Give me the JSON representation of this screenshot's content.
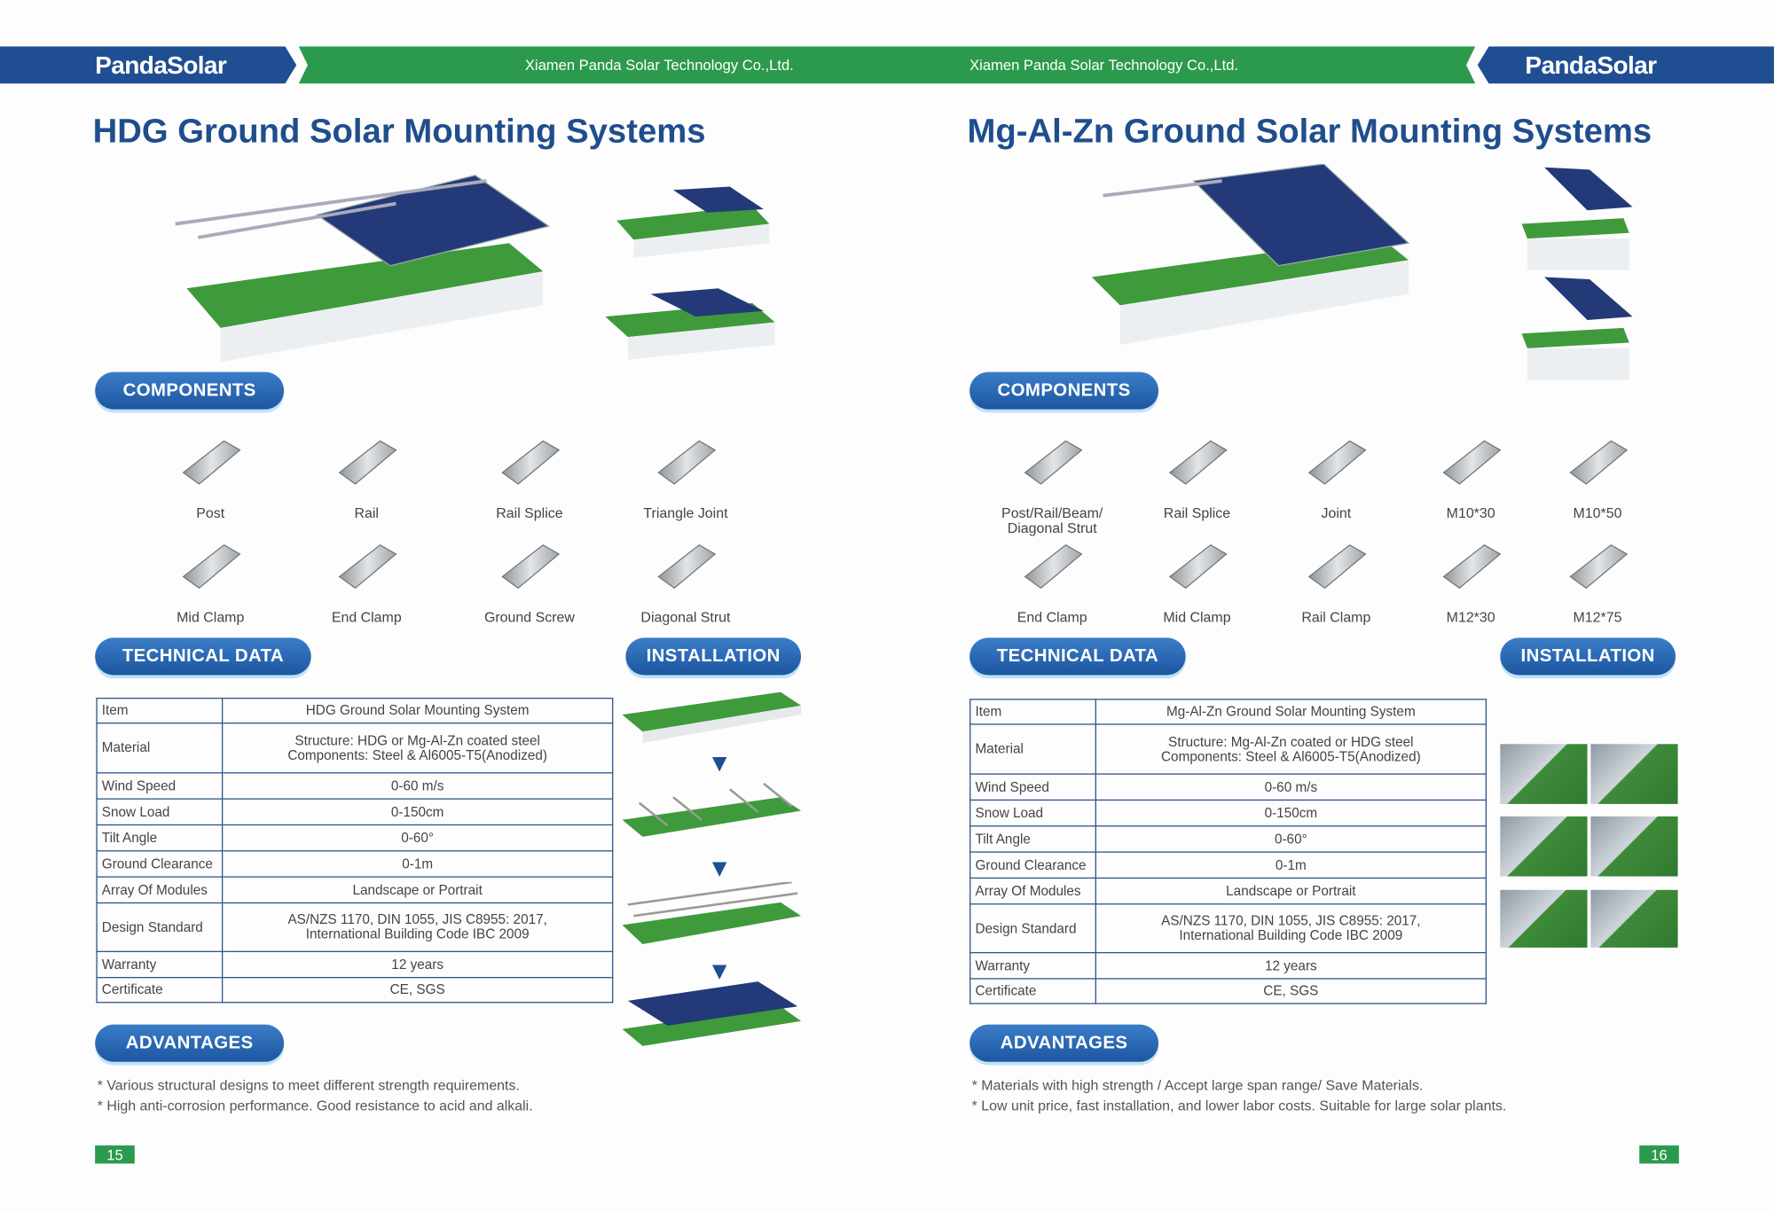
{
  "header": {
    "logo": "PandaSolar",
    "company_left": "Xiamen Panda Solar Technology Co.,Ltd.",
    "company_right": "Xiamen Panda Solar Technology Co.,Ltd.",
    "colors": {
      "blue": "#1f4e93",
      "green": "#2c9a4c"
    }
  },
  "left_page": {
    "title": "HDG Ground Solar Mounting Systems",
    "components_label": "COMPONENTS",
    "components": [
      "Post",
      "Rail",
      "Rail Splice",
      "Triangle Joint",
      "Mid Clamp",
      "End Clamp",
      "Ground Screw",
      "Diagonal Strut"
    ],
    "technical_label": "TECHNICAL DATA",
    "installation_label": "INSTALLATION",
    "table": [
      [
        "Item",
        "HDG Ground Solar Mounting System"
      ],
      [
        "Material",
        "Structure: HDG or Mg-Al-Zn coated steel\nComponents: Steel & Al6005-T5(Anodized)"
      ],
      [
        "Wind Speed",
        "0-60 m/s"
      ],
      [
        "Snow Load",
        "0-150cm"
      ],
      [
        "Tilt Angle",
        "0-60°"
      ],
      [
        "Ground Clearance",
        "0-1m"
      ],
      [
        "Array Of Modules",
        "Landscape or Portrait"
      ],
      [
        "Design Standard",
        "AS/NZS 1170, DIN 1055, JIS C8955: 2017,\nInternational Building Code IBC 2009"
      ],
      [
        "Warranty",
        "12 years"
      ],
      [
        "Certificate",
        "CE, SGS"
      ]
    ],
    "advantages_label": "ADVANTAGES",
    "advantages": [
      "* Various structural designs to meet different strength requirements.",
      "* High anti-corrosion performance. Good resistance to acid and alkali."
    ],
    "page_number": "15"
  },
  "right_page": {
    "title": "Mg-Al-Zn Ground Solar Mounting Systems",
    "components_label": "COMPONENTS",
    "components": [
      "Post/Rail/Beam/\nDiagonal Strut",
      "Rail Splice",
      "Joint",
      "M10*30",
      "M10*50",
      "End Clamp",
      "Mid Clamp",
      "Rail Clamp",
      "M12*30",
      "M12*75"
    ],
    "technical_label": "TECHNICAL DATA",
    "installation_label": "INSTALLATION",
    "table": [
      [
        "Item",
        "Mg-Al-Zn Ground Solar Mounting System"
      ],
      [
        "Material",
        "Structure: Mg-Al-Zn coated or HDG steel\nComponents: Steel & Al6005-T5(Anodized)"
      ],
      [
        "Wind Speed",
        "0-60 m/s"
      ],
      [
        "Snow Load",
        "0-150cm"
      ],
      [
        "Tilt Angle",
        "0-60°"
      ],
      [
        "Ground Clearance",
        "0-1m"
      ],
      [
        "Array Of Modules",
        "Landscape or Portrait"
      ],
      [
        "Design Standard",
        "AS/NZS 1170, DIN 1055, JIS C8955: 2017,\nInternational Building Code IBC 2009"
      ],
      [
        "Warranty",
        "12 years"
      ],
      [
        "Certificate",
        "CE, SGS"
      ]
    ],
    "advantages_label": "ADVANTAGES",
    "advantages": [
      "* Materials with high strength / Accept large span range/ Save Materials.",
      "* Low unit price, fast installation, and lower labor costs. Suitable for large solar plants."
    ],
    "page_number": "16"
  }
}
